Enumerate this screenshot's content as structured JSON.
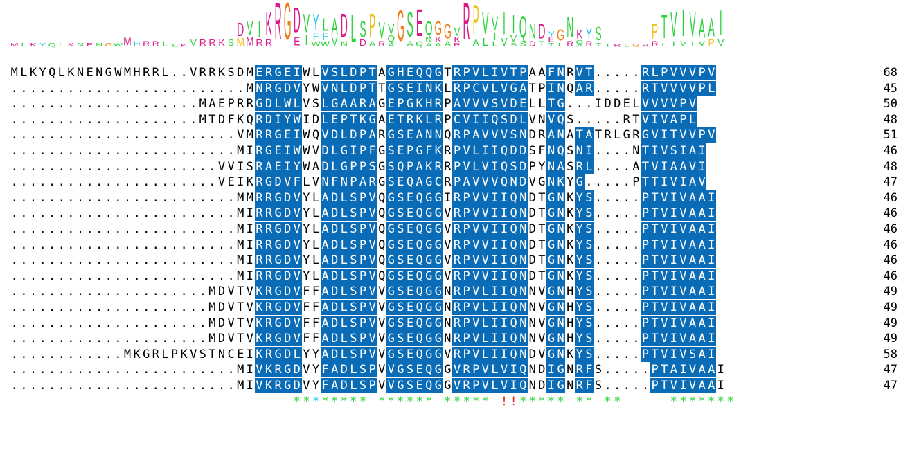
{
  "alignment": {
    "sequences": [
      {
        "seq": "MLKYQLKNENGWMHRRL..VRRKSDMERGEIWLVSLDPTAGHEQQGTRPVLIVTPAAFNRVT.....RLPVVVPV",
        "len": "68"
      },
      {
        "seq": ".........................MNRGDVYWVNLDPTTGSEINKLRPCVLVGATPINQAR.....RTVVVVPL",
        "len": "45"
      },
      {
        "seq": "....................MAEPRRGDLWLVSLGAARAGEPGKHRPAVVVSVDELLTG...IDDELVVVVPV",
        "len": "50"
      },
      {
        "seq": "....................MTDFKQRDIYWIDLEPTKGAETRKLRPCVIIQSDLVNVQS.....RTVIVAPL",
        "len": "48"
      },
      {
        "seq": "........................VMRRGEIWQVDLDPARGSEANNQRPAVVVSNDRANATATRLGRGVITVVPV",
        "len": "51"
      },
      {
        "seq": "........................MIRGEIWWVDLGIPFGSEPGFKRPVLIIQDDSFNQSNI....NTIVSIAI",
        "len": "46"
      },
      {
        "seq": "......................VVISRAEIYWADLGPPSGSQPAKRRPVLVIQSDPYNASRL....ATVIAAVI",
        "len": "48"
      },
      {
        "seq": "......................VEIKRGDVFLVNFNPARGSEQAGCRPAVVVQNDVGNKYG.....PTTIVIAV",
        "len": "47"
      },
      {
        "seq": "........................MMRRGDVYLADLSPVQGSEQGGIRPVVIIQNDTGNKYS.....PTVIVAAI",
        "len": "46"
      },
      {
        "seq": "........................MIRRGDVYLADLSPVQGSEQGGVRPVVIIQNDTGNKYS.....PTVIVAAI",
        "len": "46"
      },
      {
        "seq": "........................MIRRGDVYLADLSPVQGSEQGGVRPVVIIQNDTGNKYS.....PTVIVAAI",
        "len": "46"
      },
      {
        "seq": "........................MIRRGDVYLADLSPVQGSEQGGVRPVVIIQNDTGNKYS.....PTVIVAAI",
        "len": "46"
      },
      {
        "seq": "........................MIRRGDVYLADLSPVQGSEQGGVRPVVIIQNDTGNKYS.....PTVIVAAI",
        "len": "46"
      },
      {
        "seq": "........................MIRRGDVYLADLSPVQGSEQGGVRPVVIIQNDTGNKYS.....PTVIVAAI",
        "len": "46"
      },
      {
        "seq": ".....................MDVTVKRGDVFFADLSPVVGSEQGGNRPVLIIQNNVGNHYS.....PTVIVAAI",
        "len": "49"
      },
      {
        "seq": ".....................MDVTVKRGDVFFADLSPVVGSEQGGNRPVLIIQNNVGNHYS.....PTVIVAAI",
        "len": "49"
      },
      {
        "seq": ".....................MDVTVKRGDVFFADLSPVVGSEQGGNRPVLIIQNNVGNHYS.....PTVIVAAI",
        "len": "49"
      },
      {
        "seq": ".....................MDVTVKRGDVFFADLSPVVGSEQGGNRPVLIIQNNVGNHYS.....PTVIVAAI",
        "len": "49"
      },
      {
        "seq": "............MKGRLPKVSTNCEIKRGDLYYADLSPVVGSEQGGVRPVLIIQNDVGNKYS.....PTVIVSAI",
        "len": "58"
      },
      {
        "seq": "........................MIVKRGDVYFADLSPVVGSEQGGVRPVLVIQNDIGNRFS.....PTAIVAAI",
        "len": "47"
      },
      {
        "seq": "........................MIVKRGDVYFADLSPVVGSEQGGVRPVLVIQNDIGNRFS.....PTVIVAAI",
        "len": "47"
      }
    ],
    "consensus": "                          **:***** ****** ***** !!***** ** **     *******",
    "consensus_colors": {
      "*": "#2bd23b",
      ":": "#22c1e8",
      "!": "#e42121",
      "o": "#f07c17"
    },
    "colors": {
      "blue": "#0a6cb6",
      "magenta": "#d81a8a"
    }
  },
  "logo": {
    "columns": [
      {
        "letters": [
          {
            "ch": "M",
            "color": "#d81a8a",
            "h": 6
          }
        ]
      },
      {
        "letters": [
          {
            "ch": "L",
            "color": "#2bd23b",
            "h": 6
          }
        ]
      },
      {
        "letters": [
          {
            "ch": "K",
            "color": "#d81a8a",
            "h": 6
          }
        ]
      },
      {
        "letters": [
          {
            "ch": "Y",
            "color": "#22c1e8",
            "h": 6
          }
        ]
      },
      {
        "letters": [
          {
            "ch": "Q",
            "color": "#2bd23b",
            "h": 6
          }
        ]
      },
      {
        "letters": [
          {
            "ch": "L",
            "color": "#2bd23b",
            "h": 6
          }
        ]
      },
      {
        "letters": [
          {
            "ch": "K",
            "color": "#d81a8a",
            "h": 6
          }
        ]
      },
      {
        "letters": [
          {
            "ch": "N",
            "color": "#2bd23b",
            "h": 6
          }
        ]
      },
      {
        "letters": [
          {
            "ch": "E",
            "color": "#d81a8a",
            "h": 6
          }
        ]
      },
      {
        "letters": [
          {
            "ch": "N",
            "color": "#2bd23b",
            "h": 6
          }
        ]
      },
      {
        "letters": [
          {
            "ch": "G",
            "color": "#f07c17",
            "h": 6
          }
        ]
      },
      {
        "letters": [
          {
            "ch": "W",
            "color": "#2bd23b",
            "h": 6
          }
        ]
      },
      {
        "letters": [
          {
            "ch": "M",
            "color": "#d81a8a",
            "h": 14
          }
        ]
      },
      {
        "letters": [
          {
            "ch": "H",
            "color": "#22c1e8",
            "h": 8
          }
        ]
      },
      {
        "letters": [
          {
            "ch": "R",
            "color": "#d81a8a",
            "h": 8
          }
        ]
      },
      {
        "letters": [
          {
            "ch": "R",
            "color": "#d81a8a",
            "h": 8
          }
        ]
      },
      {
        "letters": [
          {
            "ch": "L",
            "color": "#2bd23b",
            "h": 8
          }
        ]
      },
      {
        "letters": [
          {
            "ch": "L",
            "color": "#2bd23b",
            "h": 4
          }
        ]
      },
      {
        "letters": [
          {
            "ch": "K",
            "color": "#d81a8a",
            "h": 4
          }
        ]
      },
      {
        "letters": [
          {
            "ch": "V",
            "color": "#2bd23b",
            "h": 10
          }
        ]
      },
      {
        "letters": [
          {
            "ch": "R",
            "color": "#d81a8a",
            "h": 10
          }
        ]
      },
      {
        "letters": [
          {
            "ch": "R",
            "color": "#d81a8a",
            "h": 10
          }
        ]
      },
      {
        "letters": [
          {
            "ch": "K",
            "color": "#d81a8a",
            "h": 10
          }
        ]
      },
      {
        "letters": [
          {
            "ch": "S",
            "color": "#2bd23b",
            "h": 10
          }
        ]
      },
      {
        "letters": [
          {
            "ch": "D",
            "color": "#d81a8a",
            "h": 22
          },
          {
            "ch": "M",
            "color": "#f0c020",
            "h": 12
          }
        ]
      },
      {
        "letters": [
          {
            "ch": "V",
            "color": "#2bd23b",
            "h": 22
          },
          {
            "ch": "M",
            "color": "#d81a8a",
            "h": 14
          }
        ]
      },
      {
        "letters": [
          {
            "ch": "I",
            "color": "#2bd23b",
            "h": 26
          },
          {
            "ch": "R",
            "color": "#d81a8a",
            "h": 10
          }
        ]
      },
      {
        "letters": [
          {
            "ch": "K",
            "color": "#d81a8a",
            "h": 38
          },
          {
            "ch": "R",
            "color": "#d81a8a",
            "h": 10
          }
        ]
      },
      {
        "letters": [
          {
            "ch": "R",
            "color": "#d81a8a",
            "h": 60
          }
        ]
      },
      {
        "letters": [
          {
            "ch": "G",
            "color": "#f07c17",
            "h": 60
          }
        ]
      },
      {
        "letters": [
          {
            "ch": "D",
            "color": "#d81a8a",
            "h": 40
          },
          {
            "ch": "E",
            "color": "#d81a8a",
            "h": 14
          }
        ]
      },
      {
        "letters": [
          {
            "ch": "V",
            "color": "#2bd23b",
            "h": 30
          },
          {
            "ch": "I",
            "color": "#2bd23b",
            "h": 16
          }
        ]
      },
      {
        "letters": [
          {
            "ch": "Y",
            "color": "#22c1e8",
            "h": 26
          },
          {
            "ch": "F",
            "color": "#22c1e8",
            "h": 12
          },
          {
            "ch": "W",
            "color": "#2bd23b",
            "h": 8
          }
        ]
      },
      {
        "letters": [
          {
            "ch": "L",
            "color": "#2bd23b",
            "h": 20
          },
          {
            "ch": "F",
            "color": "#22c1e8",
            "h": 12
          },
          {
            "ch": "W",
            "color": "#2bd23b",
            "h": 8
          }
        ]
      },
      {
        "letters": [
          {
            "ch": "A",
            "color": "#2bd23b",
            "h": 26
          },
          {
            "ch": "V",
            "color": "#2bd23b",
            "h": 14
          }
        ]
      },
      {
        "letters": [
          {
            "ch": "D",
            "color": "#d81a8a",
            "h": 38
          },
          {
            "ch": "N",
            "color": "#2bd23b",
            "h": 8
          }
        ]
      },
      {
        "letters": [
          {
            "ch": "L",
            "color": "#2bd23b",
            "h": 44
          }
        ]
      },
      {
        "letters": [
          {
            "ch": "S",
            "color": "#2bd23b",
            "h": 26
          },
          {
            "ch": "D",
            "color": "#d81a8a",
            "h": 10
          }
        ]
      },
      {
        "letters": [
          {
            "ch": "P",
            "color": "#f0c020",
            "h": 38
          },
          {
            "ch": "A",
            "color": "#2bd23b",
            "h": 8
          }
        ]
      },
      {
        "letters": [
          {
            "ch": "V",
            "color": "#2bd23b",
            "h": 26
          },
          {
            "ch": "R",
            "color": "#d81a8a",
            "h": 8
          }
        ]
      },
      {
        "letters": [
          {
            "ch": "V",
            "color": "#2bd23b",
            "h": 16
          },
          {
            "ch": "Q",
            "color": "#2bd23b",
            "h": 10
          },
          {
            "ch": "A",
            "color": "#2bd23b",
            "h": 6
          }
        ]
      },
      {
        "letters": [
          {
            "ch": "G",
            "color": "#f07c17",
            "h": 50
          }
        ]
      },
      {
        "letters": [
          {
            "ch": "S",
            "color": "#2bd23b",
            "h": 40
          },
          {
            "ch": "A",
            "color": "#2bd23b",
            "h": 8
          }
        ]
      },
      {
        "letters": [
          {
            "ch": "E",
            "color": "#d81a8a",
            "h": 44
          },
          {
            "ch": "Q",
            "color": "#2bd23b",
            "h": 8
          }
        ]
      },
      {
        "letters": [
          {
            "ch": "Q",
            "color": "#2bd23b",
            "h": 22
          },
          {
            "ch": "N",
            "color": "#2bd23b",
            "h": 8
          },
          {
            "ch": "A",
            "color": "#2bd23b",
            "h": 6
          }
        ]
      },
      {
        "letters": [
          {
            "ch": "G",
            "color": "#f07c17",
            "h": 22
          },
          {
            "ch": "K",
            "color": "#d81a8a",
            "h": 8
          },
          {
            "ch": "A",
            "color": "#2bd23b",
            "h": 6
          }
        ]
      },
      {
        "letters": [
          {
            "ch": "G",
            "color": "#f07c17",
            "h": 24
          },
          {
            "ch": "A",
            "color": "#2bd23b",
            "h": 8
          }
        ]
      },
      {
        "letters": [
          {
            "ch": "V",
            "color": "#2bd23b",
            "h": 14
          },
          {
            "ch": "K",
            "color": "#d81a8a",
            "h": 8
          },
          {
            "ch": "R",
            "color": "#d81a8a",
            "h": 6
          }
        ]
      },
      {
        "letters": [
          {
            "ch": "R",
            "color": "#d81a8a",
            "h": 60
          }
        ]
      },
      {
        "letters": [
          {
            "ch": "P",
            "color": "#f0c020",
            "h": 48
          },
          {
            "ch": "A",
            "color": "#2bd23b",
            "h": 10
          }
        ]
      },
      {
        "letters": [
          {
            "ch": "V",
            "color": "#2bd23b",
            "h": 36
          },
          {
            "ch": "L",
            "color": "#2bd23b",
            "h": 12
          }
        ]
      },
      {
        "letters": [
          {
            "ch": "V",
            "color": "#2bd23b",
            "h": 22
          },
          {
            "ch": "I",
            "color": "#2bd23b",
            "h": 12
          },
          {
            "ch": "L",
            "color": "#2bd23b",
            "h": 8
          }
        ]
      },
      {
        "letters": [
          {
            "ch": "I",
            "color": "#2bd23b",
            "h": 36
          },
          {
            "ch": "V",
            "color": "#2bd23b",
            "h": 12
          }
        ]
      },
      {
        "letters": [
          {
            "ch": "I",
            "color": "#2bd23b",
            "h": 28
          },
          {
            "ch": "V",
            "color": "#2bd23b",
            "h": 10
          },
          {
            "ch": "S",
            "color": "#2bd23b",
            "h": 6
          }
        ]
      },
      {
        "letters": [
          {
            "ch": "Q",
            "color": "#2bd23b",
            "h": 34
          },
          {
            "ch": "S",
            "color": "#2bd23b",
            "h": 8
          }
        ]
      },
      {
        "letters": [
          {
            "ch": "N",
            "color": "#2bd23b",
            "h": 24
          },
          {
            "ch": "D",
            "color": "#d81a8a",
            "h": 8
          }
        ]
      },
      {
        "letters": [
          {
            "ch": "D",
            "color": "#d81a8a",
            "h": 24
          },
          {
            "ch": "T",
            "color": "#2bd23b",
            "h": 8
          }
        ]
      },
      {
        "letters": [
          {
            "ch": "Y",
            "color": "#22c1e8",
            "h": 8
          },
          {
            "ch": "E",
            "color": "#d81a8a",
            "h": 8
          },
          {
            "ch": "T",
            "color": "#2bd23b",
            "h": 6
          }
        ]
      },
      {
        "letters": [
          {
            "ch": "G",
            "color": "#f07c17",
            "h": 18
          },
          {
            "ch": "L",
            "color": "#2bd23b",
            "h": 6
          }
        ]
      },
      {
        "letters": [
          {
            "ch": "N",
            "color": "#2bd23b",
            "h": 34
          },
          {
            "ch": "R",
            "color": "#d81a8a",
            "h": 8
          }
        ]
      },
      {
        "letters": [
          {
            "ch": "K",
            "color": "#d81a8a",
            "h": 14
          },
          {
            "ch": "Q",
            "color": "#2bd23b",
            "h": 6
          },
          {
            "ch": "A",
            "color": "#2bd23b",
            "h": 4
          }
        ]
      },
      {
        "letters": [
          {
            "ch": "Y",
            "color": "#22c1e8",
            "h": 18
          },
          {
            "ch": "R",
            "color": "#d81a8a",
            "h": 8
          }
        ]
      },
      {
        "letters": [
          {
            "ch": "S",
            "color": "#2bd23b",
            "h": 22
          },
          {
            "ch": "T",
            "color": "#2bd23b",
            "h": 6
          }
        ]
      },
      {
        "letters": [
          {
            "ch": "T",
            "color": "#2bd23b",
            "h": 4
          }
        ]
      },
      {
        "letters": [
          {
            "ch": "R",
            "color": "#d81a8a",
            "h": 4
          }
        ]
      },
      {
        "letters": [
          {
            "ch": "L",
            "color": "#2bd23b",
            "h": 4
          }
        ]
      },
      {
        "letters": [
          {
            "ch": "G",
            "color": "#f07c17",
            "h": 4
          }
        ]
      },
      {
        "letters": [
          {
            "ch": "R",
            "color": "#d81a8a",
            "h": 4
          }
        ]
      },
      {
        "letters": [
          {
            "ch": "P",
            "color": "#f0c020",
            "h": 24
          },
          {
            "ch": "R",
            "color": "#d81a8a",
            "h": 8
          }
        ]
      },
      {
        "letters": [
          {
            "ch": "T",
            "color": "#2bd23b",
            "h": 38
          },
          {
            "ch": "L",
            "color": "#2bd23b",
            "h": 6
          }
        ]
      },
      {
        "letters": [
          {
            "ch": "V",
            "color": "#2bd23b",
            "h": 40
          },
          {
            "ch": "I",
            "color": "#2bd23b",
            "h": 8
          }
        ]
      },
      {
        "letters": [
          {
            "ch": "I",
            "color": "#2bd23b",
            "h": 44
          },
          {
            "ch": "V",
            "color": "#2bd23b",
            "h": 8
          }
        ]
      },
      {
        "letters": [
          {
            "ch": "V",
            "color": "#2bd23b",
            "h": 40
          },
          {
            "ch": "I",
            "color": "#2bd23b",
            "h": 8
          }
        ]
      },
      {
        "letters": [
          {
            "ch": "A",
            "color": "#2bd23b",
            "h": 32
          },
          {
            "ch": "V",
            "color": "#2bd23b",
            "h": 8
          }
        ]
      },
      {
        "letters": [
          {
            "ch": "A",
            "color": "#2bd23b",
            "h": 30
          },
          {
            "ch": "P",
            "color": "#f0c020",
            "h": 10
          }
        ]
      },
      {
        "letters": [
          {
            "ch": "I",
            "color": "#2bd23b",
            "h": 40
          },
          {
            "ch": "V",
            "color": "#2bd23b",
            "h": 10
          }
        ]
      }
    ]
  }
}
